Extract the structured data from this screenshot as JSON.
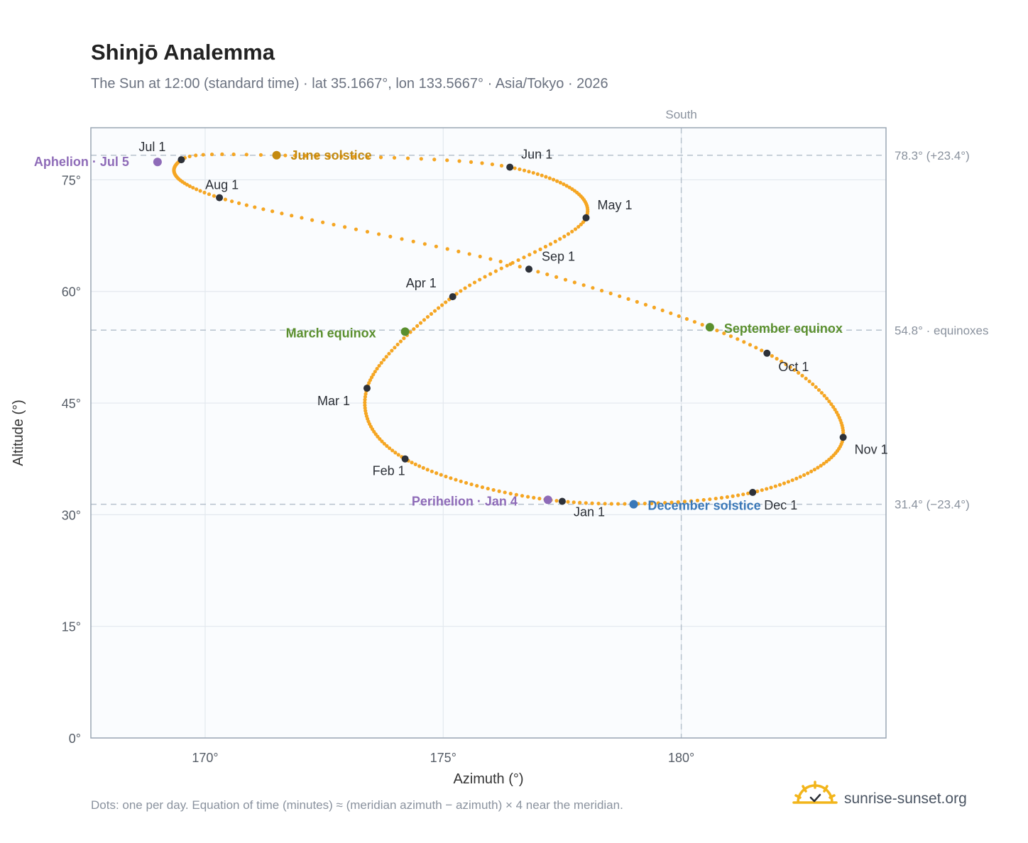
{
  "title": "Shinjō Analemma",
  "subtitle": "The Sun at 12:00 (standard time) · lat 35.1667°, lon 133.5667° · Asia/Tokyo · 2026",
  "footnote": "Dots: one per day. Equation of time (minutes) ≈ (meridian azimuth − azimuth) × 4 near the meridian.",
  "brand": {
    "name": "sunrise-sunset.org",
    "icon": "sun-logo-icon"
  },
  "colors": {
    "curve": "#f5a623",
    "month": "#2d3139",
    "aphelion": "#8e6bb8",
    "perihelion": "#8e6bb8",
    "june": "#c48a10",
    "equinox": "#5a8f2e",
    "december": "#3a78b8",
    "plot_bg": "#fafcfe",
    "grid": "#e3e8ee",
    "frame": "#9aa6b4",
    "ref": "#b7c2cd"
  },
  "chart_data": {
    "type": "scatter",
    "xlabel": "Azimuth (°)",
    "ylabel": "Altitude (°)",
    "xlim": [
      167.6,
      184.3
    ],
    "ylim": [
      0,
      82.0
    ],
    "xticks": [
      170,
      175,
      180
    ],
    "xtick_labels": [
      "170°",
      "175°",
      "180°"
    ],
    "yticks": [
      0,
      15,
      30,
      45,
      60,
      75
    ],
    "ytick_labels": [
      "0°",
      "15°",
      "30°",
      "45°",
      "60°",
      "75°"
    ],
    "grid": true,
    "south": {
      "azimuth": 180,
      "label": "South"
    },
    "reference_lines": [
      {
        "altitude": 78.3,
        "label": "78.3° (+23.4°)"
      },
      {
        "altitude": 54.8,
        "label": "54.8° · equinoxes"
      },
      {
        "altitude": 31.4,
        "label": "31.4° (−23.4°)"
      }
    ],
    "path_keypoints": [
      {
        "day": 1,
        "az": 177.5,
        "alt": 31.8
      },
      {
        "day": 32,
        "az": 174.2,
        "alt": 37.5
      },
      {
        "day": 60,
        "az": 173.4,
        "alt": 47.0
      },
      {
        "day": 91,
        "az": 175.2,
        "alt": 59.3
      },
      {
        "day": 121,
        "az": 178.0,
        "alt": 69.9
      },
      {
        "day": 152,
        "az": 176.4,
        "alt": 76.7
      },
      {
        "day": 172,
        "az": 171.5,
        "alt": 78.3
      },
      {
        "day": 182,
        "az": 169.5,
        "alt": 77.7
      },
      {
        "day": 213,
        "az": 170.3,
        "alt": 72.6
      },
      {
        "day": 244,
        "az": 176.8,
        "alt": 63.0
      },
      {
        "day": 274,
        "az": 181.8,
        "alt": 51.7
      },
      {
        "day": 305,
        "az": 183.4,
        "alt": 40.4
      },
      {
        "day": 335,
        "az": 181.5,
        "alt": 33.0
      },
      {
        "day": 366,
        "az": 177.5,
        "alt": 31.8
      }
    ],
    "months": [
      {
        "label": "Jan 1",
        "az": 177.5,
        "alt": 31.8
      },
      {
        "label": "Feb 1",
        "az": 174.2,
        "alt": 37.5
      },
      {
        "label": "Mar 1",
        "az": 173.4,
        "alt": 47.0
      },
      {
        "label": "Apr 1",
        "az": 175.2,
        "alt": 59.3
      },
      {
        "label": "May 1",
        "az": 178.0,
        "alt": 69.9
      },
      {
        "label": "Jun 1",
        "az": 176.4,
        "alt": 76.7
      },
      {
        "label": "Jul 1",
        "az": 169.5,
        "alt": 77.7
      },
      {
        "label": "Aug 1",
        "az": 170.3,
        "alt": 72.6
      },
      {
        "label": "Sep 1",
        "az": 176.8,
        "alt": 63.0
      },
      {
        "label": "Oct 1",
        "az": 181.8,
        "alt": 51.7
      },
      {
        "label": "Nov 1",
        "az": 183.4,
        "alt": 40.4
      },
      {
        "label": "Dec 1",
        "az": 181.5,
        "alt": 33.0
      }
    ],
    "events": [
      {
        "label": "Aphelion · Jul 5",
        "az": 169.0,
        "alt": 77.4,
        "color": "#8e6bb8"
      },
      {
        "label": "June solstice",
        "az": 171.5,
        "alt": 78.3,
        "color": "#c48a10"
      },
      {
        "label": "March equinox",
        "az": 174.2,
        "alt": 54.6,
        "color": "#5a8f2e"
      },
      {
        "label": "September equinox",
        "az": 180.6,
        "alt": 55.2,
        "color": "#5a8f2e"
      },
      {
        "label": "Perihelion · Jan 4",
        "az": 177.2,
        "alt": 32.0,
        "color": "#8e6bb8"
      },
      {
        "label": "December solstice",
        "az": 179.0,
        "alt": 31.4,
        "color": "#3a78b8"
      }
    ]
  }
}
